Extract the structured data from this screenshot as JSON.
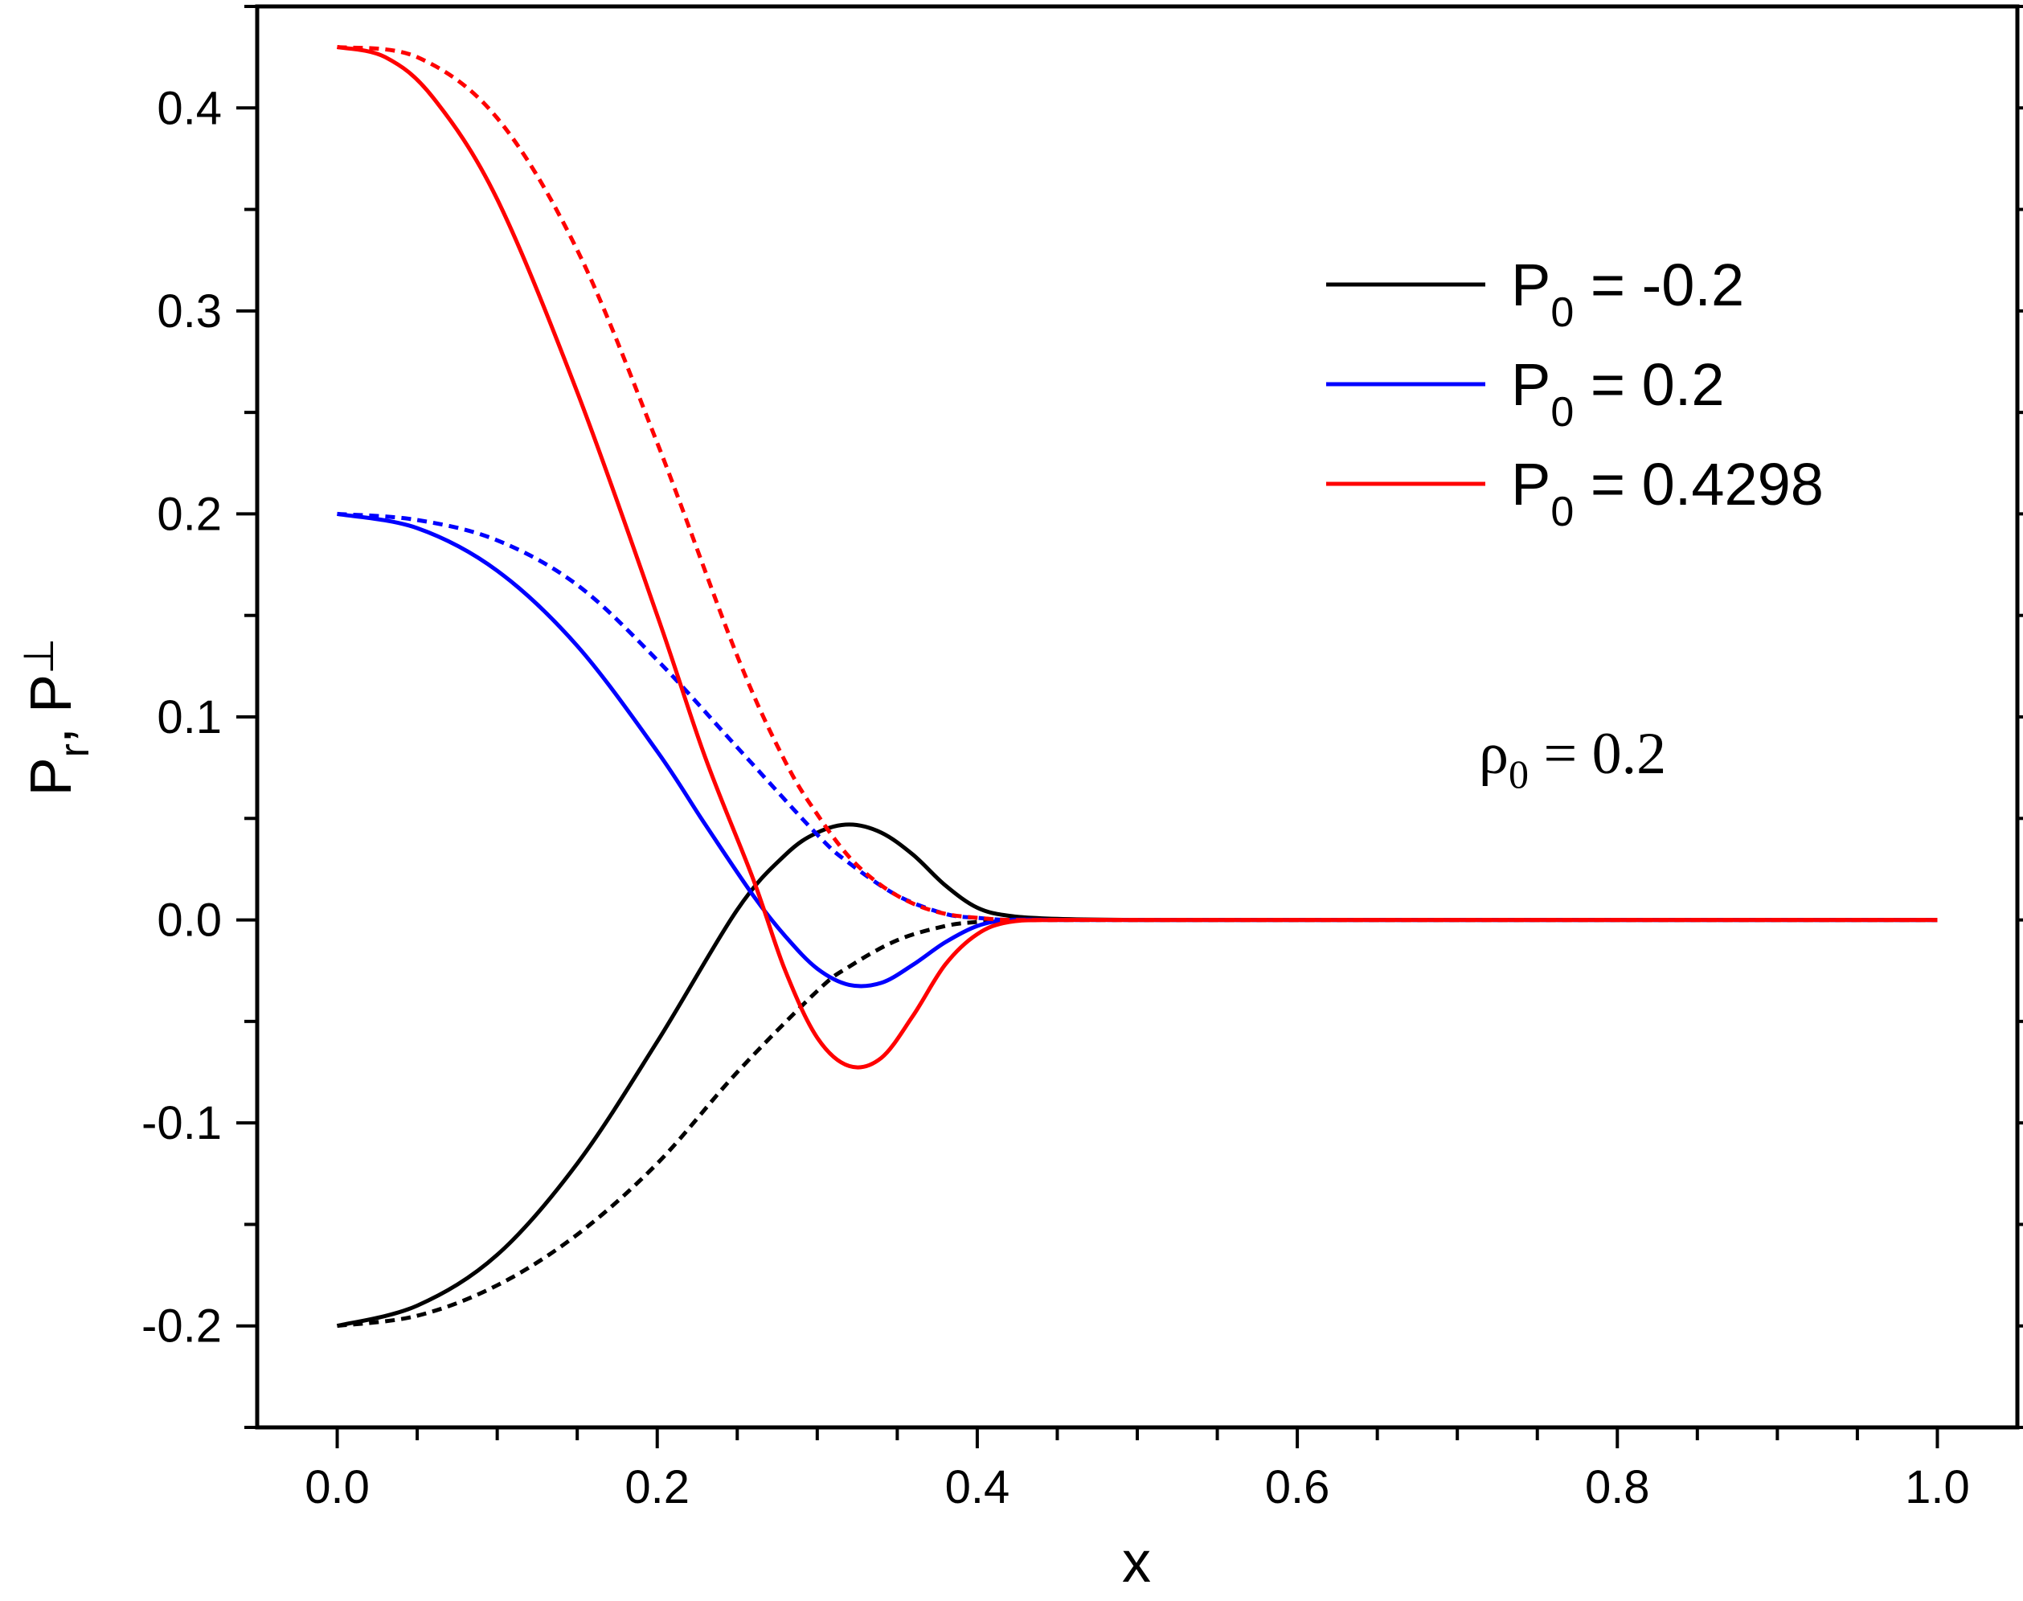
{
  "chart_data": {
    "type": "line",
    "xlabel": "x",
    "ylabel": {
      "p": "P",
      "r_sub": "r",
      "comma": ",",
      "perp_sub": "⊥"
    },
    "xlim": [
      -0.05,
      1.05
    ],
    "ylim": [
      -0.25,
      0.45
    ],
    "xticks": [
      "0.0",
      "0.2",
      "0.4",
      "0.6",
      "0.8",
      "1.0"
    ],
    "yticks": [
      "-0.2",
      "-0.1",
      "0.0",
      "0.1",
      "0.2",
      "0.3",
      "0.4"
    ],
    "grid": false,
    "legend_position": "top-right",
    "annotation": {
      "rho": "ρ",
      "sub": "0",
      "rest": " = 0.2"
    },
    "series": [
      {
        "name": "P0 = -0.2",
        "legend": {
          "p": "P",
          "sub": "0",
          "rest": " = -0.2"
        },
        "color": "#000000",
        "style": "solid",
        "x": [
          0,
          0.05,
          0.1,
          0.15,
          0.2,
          0.25,
          0.28,
          0.3,
          0.32,
          0.34,
          0.36,
          0.38,
          0.4,
          0.42,
          0.45,
          0.5,
          0.6,
          0.8,
          1.0
        ],
        "y": [
          -0.2,
          -0.19,
          -0.165,
          -0.12,
          -0.06,
          0.005,
          0.032,
          0.043,
          0.047,
          0.043,
          0.032,
          0.017,
          0.006,
          0.002,
          0.0005,
          0,
          0,
          0,
          0
        ]
      },
      {
        "name": "P0 = -0.2 (dashed)",
        "color": "#000000",
        "style": "dashed",
        "x": [
          0,
          0.05,
          0.1,
          0.15,
          0.2,
          0.25,
          0.3,
          0.32,
          0.35,
          0.38,
          0.4,
          0.42,
          0.45,
          0.5,
          0.6,
          0.8,
          1.0
        ],
        "y": [
          -0.2,
          -0.195,
          -0.18,
          -0.155,
          -0.12,
          -0.075,
          -0.035,
          -0.023,
          -0.01,
          -0.003,
          -0.001,
          0,
          0,
          0,
          0,
          0,
          0
        ]
      },
      {
        "name": "P0 = 0.2",
        "legend": {
          "p": "P",
          "sub": "0",
          "rest": " = 0.2"
        },
        "color": "#0000ff",
        "style": "solid",
        "x": [
          0,
          0.05,
          0.1,
          0.15,
          0.2,
          0.23,
          0.26,
          0.28,
          0.3,
          0.32,
          0.34,
          0.36,
          0.38,
          0.4,
          0.42,
          0.45,
          0.5,
          0.6,
          0.8,
          1.0
        ],
        "y": [
          0.2,
          0.193,
          0.172,
          0.135,
          0.083,
          0.047,
          0.012,
          -0.008,
          -0.024,
          -0.032,
          -0.031,
          -0.022,
          -0.011,
          -0.003,
          0,
          0,
          0,
          0,
          0,
          0
        ]
      },
      {
        "name": "P0 = 0.2 (dashed)",
        "color": "#0000ff",
        "style": "dashed",
        "x": [
          0,
          0.05,
          0.1,
          0.15,
          0.2,
          0.25,
          0.3,
          0.32,
          0.35,
          0.38,
          0.4,
          0.42,
          0.45,
          0.5,
          0.6,
          0.8,
          1.0
        ],
        "y": [
          0.2,
          0.197,
          0.187,
          0.165,
          0.128,
          0.085,
          0.042,
          0.028,
          0.012,
          0.003,
          0.001,
          0,
          0,
          0,
          0,
          0,
          0
        ]
      },
      {
        "name": "P0 = 0.4298",
        "legend": {
          "p": "P",
          "sub": "0",
          "rest": " = 0.4298"
        },
        "color": "#ff0000",
        "style": "solid",
        "x": [
          0,
          0.03,
          0.06,
          0.1,
          0.15,
          0.2,
          0.23,
          0.26,
          0.28,
          0.3,
          0.32,
          0.34,
          0.36,
          0.38,
          0.4,
          0.42,
          0.45,
          0.5,
          0.6,
          0.8,
          1.0
        ],
        "y": [
          0.43,
          0.425,
          0.405,
          0.355,
          0.26,
          0.15,
          0.08,
          0.02,
          -0.025,
          -0.058,
          -0.072,
          -0.068,
          -0.047,
          -0.022,
          -0.007,
          -0.001,
          0,
          0,
          0,
          0,
          0
        ]
      },
      {
        "name": "P0 = 0.4298 (dashed)",
        "color": "#ff0000",
        "style": "dashed",
        "x": [
          0,
          0.05,
          0.1,
          0.15,
          0.2,
          0.25,
          0.28,
          0.3,
          0.32,
          0.34,
          0.36,
          0.38,
          0.4,
          0.42,
          0.45,
          0.5,
          0.6,
          0.8,
          1.0
        ],
        "y": [
          0.43,
          0.425,
          0.395,
          0.33,
          0.235,
          0.13,
          0.078,
          0.052,
          0.031,
          0.017,
          0.008,
          0.003,
          0.001,
          0,
          0,
          0,
          0,
          0,
          0
        ]
      }
    ]
  }
}
